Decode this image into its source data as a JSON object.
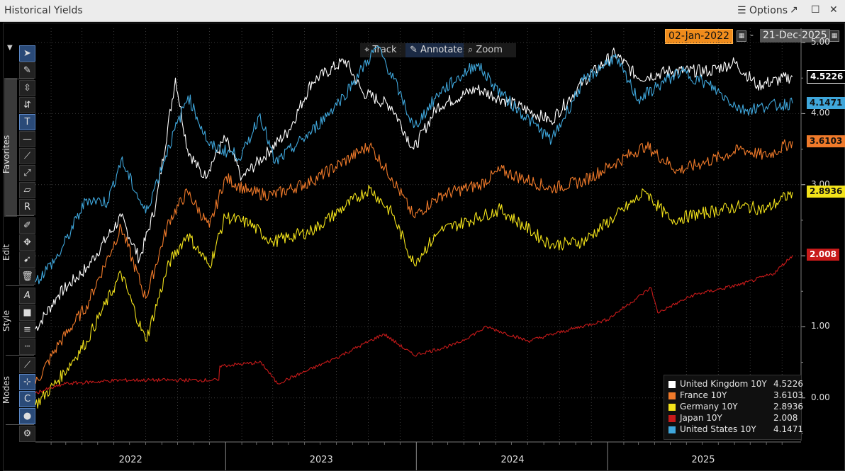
{
  "window": {
    "title": "Historical Yields",
    "options_label": "Options",
    "options_icon": "hamburger-icon",
    "popout_icon": "popout-icon",
    "maximize_icon": "maximize-icon",
    "close_icon": "close-icon"
  },
  "date_range": {
    "start": "02-Jan-2022",
    "separator": "-",
    "end": "21-Dec-2025"
  },
  "chart_modes": {
    "track": "Track",
    "annotate": "Annotate",
    "zoom": "Zoom",
    "active": "Annotate"
  },
  "toolbar": {
    "sections": {
      "favorites": "Favorites",
      "edit": "Edit",
      "style": "Style",
      "modes": "Modes"
    }
  },
  "colors": {
    "uk": "#ffffff",
    "fr": "#f07a2a",
    "de": "#f2e21a",
    "jp": "#c81a1a",
    "us": "#3fa7dc",
    "selection": "#2a4a78",
    "date_start_bg": "#f08c1c"
  },
  "chart_data": {
    "type": "line",
    "title": "Historical Yields",
    "x_range": [
      "2022-01-02",
      "2025-12-21"
    ],
    "x_ticks": [
      "2022",
      "2023",
      "2024",
      "2025"
    ],
    "ylim": [
      -0.6,
      5.2
    ],
    "y_ticks": [
      "0.00",
      "1.00",
      "2.00",
      "3.00",
      "4.00",
      "5.00"
    ],
    "grid": true,
    "legend_position": "bottom-right",
    "series": [
      {
        "name": "United Kingdom 10Y",
        "last": "4.5226",
        "color": "#ffffff",
        "points": [
          [
            "2022-01-02",
            0.97
          ],
          [
            "2022-02-15",
            1.45
          ],
          [
            "2022-04-10",
            1.83
          ],
          [
            "2022-06-15",
            2.55
          ],
          [
            "2022-07-20",
            1.95
          ],
          [
            "2022-08-20",
            2.7
          ],
          [
            "2022-09-27",
            4.5
          ],
          [
            "2022-10-20",
            3.5
          ],
          [
            "2022-11-20",
            3.1
          ],
          [
            "2022-12-31",
            3.65
          ],
          [
            "2023-02-01",
            3.1
          ],
          [
            "2023-03-15",
            3.4
          ],
          [
            "2023-05-01",
            3.75
          ],
          [
            "2023-06-15",
            4.45
          ],
          [
            "2023-08-18",
            4.75
          ],
          [
            "2023-09-20",
            4.3
          ],
          [
            "2023-11-15",
            4.1
          ],
          [
            "2023-12-27",
            3.5
          ],
          [
            "2024-02-10",
            4.1
          ],
          [
            "2024-04-25",
            4.35
          ],
          [
            "2024-06-15",
            4.2
          ],
          [
            "2024-09-15",
            3.9
          ],
          [
            "2024-11-15",
            4.45
          ],
          [
            "2025-01-15",
            4.85
          ],
          [
            "2025-03-01",
            4.5
          ],
          [
            "2025-05-01",
            4.6
          ],
          [
            "2025-07-15",
            4.6
          ],
          [
            "2025-09-01",
            4.72
          ],
          [
            "2025-10-15",
            4.4
          ],
          [
            "2025-12-21",
            4.5226
          ]
        ]
      },
      {
        "name": "France 10Y",
        "last": "3.6103",
        "color": "#f07a2a",
        "points": [
          [
            "2022-01-02",
            0.2
          ],
          [
            "2022-02-15",
            0.75
          ],
          [
            "2022-04-10",
            1.3
          ],
          [
            "2022-06-15",
            2.4
          ],
          [
            "2022-08-01",
            1.4
          ],
          [
            "2022-09-15",
            2.5
          ],
          [
            "2022-10-20",
            2.9
          ],
          [
            "2022-12-01",
            2.4
          ],
          [
            "2022-12-31",
            3.1
          ],
          [
            "2023-02-15",
            2.9
          ],
          [
            "2023-04-01",
            2.85
          ],
          [
            "2023-06-15",
            3.05
          ],
          [
            "2023-10-04",
            3.55
          ],
          [
            "2023-11-15",
            3.1
          ],
          [
            "2023-12-27",
            2.55
          ],
          [
            "2024-02-15",
            2.85
          ],
          [
            "2024-05-01",
            3.0
          ],
          [
            "2024-06-10",
            3.2
          ],
          [
            "2024-09-15",
            2.95
          ],
          [
            "2024-11-15",
            3.05
          ],
          [
            "2025-01-15",
            3.3
          ],
          [
            "2025-03-15",
            3.55
          ],
          [
            "2025-05-15",
            3.2
          ],
          [
            "2025-07-01",
            3.3
          ],
          [
            "2025-09-15",
            3.5
          ],
          [
            "2025-11-01",
            3.4
          ],
          [
            "2025-12-21",
            3.6103
          ]
        ]
      },
      {
        "name": "Germany 10Y",
        "last": "2.8936",
        "color": "#f2e21a",
        "points": [
          [
            "2022-01-02",
            -0.1
          ],
          [
            "2022-02-15",
            0.25
          ],
          [
            "2022-04-10",
            0.8
          ],
          [
            "2022-06-15",
            1.75
          ],
          [
            "2022-08-01",
            0.8
          ],
          [
            "2022-09-15",
            1.9
          ],
          [
            "2022-10-20",
            2.3
          ],
          [
            "2022-12-01",
            1.85
          ],
          [
            "2022-12-31",
            2.55
          ],
          [
            "2023-02-15",
            2.45
          ],
          [
            "2023-04-01",
            2.2
          ],
          [
            "2023-06-15",
            2.35
          ],
          [
            "2023-10-04",
            2.95
          ],
          [
            "2023-11-15",
            2.6
          ],
          [
            "2023-12-27",
            1.9
          ],
          [
            "2024-02-15",
            2.35
          ],
          [
            "2024-05-01",
            2.55
          ],
          [
            "2024-06-10",
            2.65
          ],
          [
            "2024-09-15",
            2.15
          ],
          [
            "2024-11-15",
            2.2
          ],
          [
            "2025-01-15",
            2.55
          ],
          [
            "2025-03-15",
            2.9
          ],
          [
            "2025-05-01",
            2.5
          ],
          [
            "2025-07-01",
            2.6
          ],
          [
            "2025-09-15",
            2.7
          ],
          [
            "2025-11-01",
            2.65
          ],
          [
            "2025-12-21",
            2.8936
          ]
        ]
      },
      {
        "name": "Japan 10Y",
        "last": "2.008",
        "color": "#c81a1a",
        "points": [
          [
            "2022-01-02",
            0.07
          ],
          [
            "2022-03-01",
            0.2
          ],
          [
            "2022-06-15",
            0.25
          ],
          [
            "2022-12-19",
            0.25
          ],
          [
            "2022-12-21",
            0.45
          ],
          [
            "2023-03-10",
            0.5
          ],
          [
            "2023-04-10",
            0.2
          ],
          [
            "2023-07-28",
            0.55
          ],
          [
            "2023-10-31",
            0.9
          ],
          [
            "2023-12-27",
            0.6
          ],
          [
            "2024-03-15",
            0.75
          ],
          [
            "2024-05-15",
            1.0
          ],
          [
            "2024-08-02",
            0.8
          ],
          [
            "2024-10-15",
            0.95
          ],
          [
            "2024-12-31",
            1.1
          ],
          [
            "2025-03-25",
            1.55
          ],
          [
            "2025-04-07",
            1.2
          ],
          [
            "2025-06-15",
            1.45
          ],
          [
            "2025-09-15",
            1.6
          ],
          [
            "2025-11-15",
            1.75
          ],
          [
            "2025-12-21",
            2.008
          ]
        ]
      },
      {
        "name": "United States 10Y",
        "last": "4.1471",
        "color": "#3fa7dc",
        "points": [
          [
            "2022-01-02",
            1.63
          ],
          [
            "2022-02-15",
            2.0
          ],
          [
            "2022-04-10",
            2.8
          ],
          [
            "2022-05-20",
            2.75
          ],
          [
            "2022-06-15",
            3.35
          ],
          [
            "2022-08-01",
            2.6
          ],
          [
            "2022-09-15",
            3.55
          ],
          [
            "2022-10-21",
            4.25
          ],
          [
            "2022-12-01",
            3.55
          ],
          [
            "2023-02-01",
            3.4
          ],
          [
            "2023-03-08",
            4.0
          ],
          [
            "2023-04-05",
            3.3
          ],
          [
            "2023-06-15",
            3.75
          ],
          [
            "2023-08-15",
            4.25
          ],
          [
            "2023-10-19",
            4.95
          ],
          [
            "2023-11-30",
            4.3
          ],
          [
            "2023-12-27",
            3.8
          ],
          [
            "2024-02-15",
            4.3
          ],
          [
            "2024-04-25",
            4.7
          ],
          [
            "2024-06-15",
            4.25
          ],
          [
            "2024-09-16",
            3.62
          ],
          [
            "2024-11-15",
            4.45
          ],
          [
            "2025-01-14",
            4.8
          ],
          [
            "2025-03-01",
            4.2
          ],
          [
            "2025-05-21",
            4.6
          ],
          [
            "2025-07-15",
            4.4
          ],
          [
            "2025-09-15",
            4.05
          ],
          [
            "2025-11-01",
            4.1
          ],
          [
            "2025-12-21",
            4.1471
          ]
        ]
      }
    ]
  }
}
